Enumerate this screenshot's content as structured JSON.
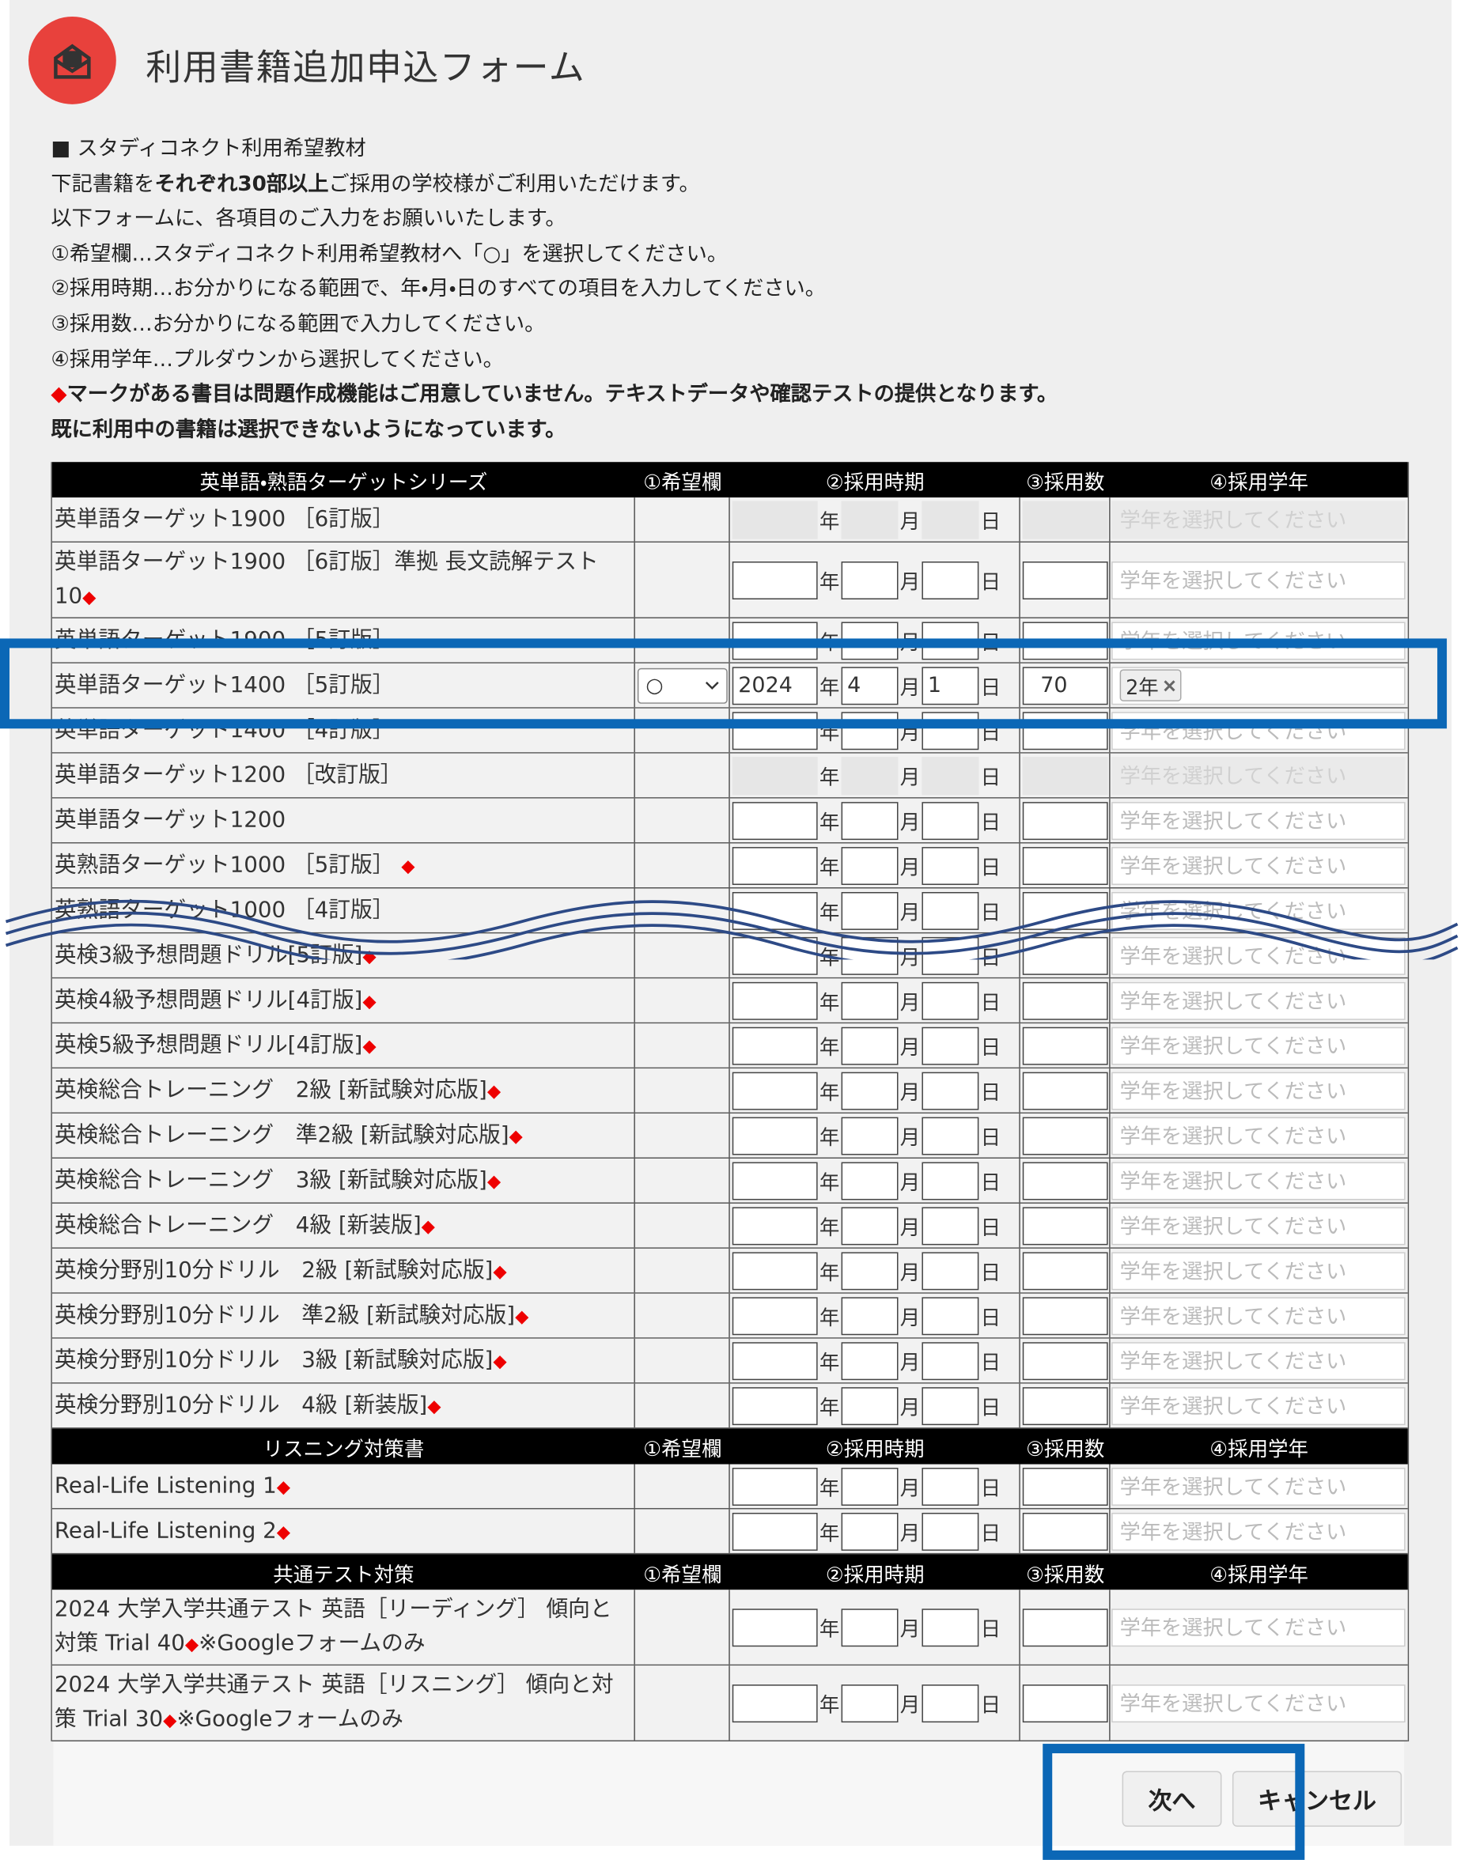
{
  "header": {
    "title": "利用書籍追加申込フォーム"
  },
  "intro": {
    "lines": [
      [
        {
          "text": "■ スタディコネクト利用希望教材"
        }
      ],
      [
        {
          "text": "下記書籍を"
        },
        {
          "text": "それぞれ30部以上",
          "bold": true
        },
        {
          "text": "ご採用の学校様がご利用いただけます。"
        }
      ],
      [
        {
          "text": "以下フォームに、各項目のご入力をお願いいたします。"
        }
      ],
      [
        {
          "text": "①希望欄…スタディコネクト利用希望教材へ「○」を選択してください。"
        }
      ],
      [
        {
          "text": "②採用時期…お分かりになる範囲で、年・月・日のすべての項目を入力してください。"
        }
      ],
      [
        {
          "text": "③採用数…お分かりになる範囲で入力してください。"
        }
      ],
      [
        {
          "text": "④採用学年…プルダウンから選択してください。"
        }
      ],
      [
        {
          "text": "◆",
          "color": "red"
        },
        {
          "text": "マークがある書目は問題作成機能はご用意していません。テキストデータや確認テストの提供となります。",
          "bold": true
        }
      ],
      [
        {
          "text": "既に利用中の書籍は選択できないようになっています。",
          "bold": true
        }
      ]
    ]
  },
  "table": {
    "columns": [
      "①希望欄",
      "②採用時期",
      "③採用数",
      "④採用学年"
    ],
    "units": [
      "年",
      "月",
      "日"
    ],
    "placeholder": "学年を選択してください",
    "diamond": "◆",
    "sections": [
      {
        "title": "英単語・熟語ターゲットシリーズ",
        "rows": [
          {
            "name": "英単語ターゲット1900 ［6訂版］",
            "state": "disabled"
          },
          {
            "name": "英単語ターゲット1900 ［6訂版］準拠 長文読解テスト10",
            "diamond": true,
            "state": "enabled"
          },
          {
            "name": "英単語ターゲット1900 ［5訂版］",
            "state": "enabled"
          },
          {
            "name": "英単語ターゲット1400 ［5訂版］",
            "state": "selected",
            "choice": "○",
            "year": "2024",
            "month": "4",
            "day": "1",
            "count": "70",
            "grade": "2年"
          },
          {
            "name": "英単語ターゲット1400 ［4訂版］",
            "state": "enabled"
          },
          {
            "name": "英単語ターゲット1200 ［改訂版］",
            "state": "disabled"
          },
          {
            "name": "英単語ターゲット1200",
            "state": "enabled"
          },
          {
            "name": "英熟語ターゲット1000 ［5訂版］ ",
            "diamond": true,
            "state": "enabled"
          },
          {
            "name": "英熟語ターゲット1000 ［4訂版］",
            "state": "enabled"
          },
          {
            "name": "英検3級予想問題ドリル[5訂版]",
            "diamond": true,
            "state": "enabled"
          },
          {
            "name": "英検4級予想問題ドリル[4訂版]",
            "diamond": true,
            "state": "enabled"
          },
          {
            "name": "英検5級予想問題ドリル[4訂版]",
            "diamond": true,
            "state": "enabled"
          },
          {
            "name": "英検総合トレーニング　2級 [新試験対応版]",
            "diamond": true,
            "state": "enabled"
          },
          {
            "name": "英検総合トレーニング　準2級 [新試験対応版]",
            "diamond": true,
            "state": "enabled"
          },
          {
            "name": "英検総合トレーニング　3級 [新試験対応版]",
            "diamond": true,
            "state": "enabled"
          },
          {
            "name": "英検総合トレーニング　4級 [新装版]",
            "diamond": true,
            "state": "enabled"
          },
          {
            "name": "英検分野別10分ドリル　2級 [新試験対応版]",
            "diamond": true,
            "state": "enabled"
          },
          {
            "name": "英検分野別10分ドリル　準2級 [新試験対応版]",
            "diamond": true,
            "state": "enabled"
          },
          {
            "name": "英検分野別10分ドリル　3級 [新試験対応版]",
            "diamond": true,
            "state": "enabled"
          },
          {
            "name": "英検分野別10分ドリル　4級 [新装版]",
            "diamond": true,
            "state": "enabled"
          }
        ]
      },
      {
        "title": "リスニング対策書",
        "rows": [
          {
            "name": "Real-Life Listening 1",
            "diamond": true,
            "state": "enabled"
          },
          {
            "name": "Real-Life Listening 2",
            "diamond": true,
            "state": "enabled"
          }
        ]
      },
      {
        "title": "共通テスト対策",
        "rows": [
          {
            "name": "2024 大学入学共通テスト 英語［リーディング］ 傾向と対策 Trial 40",
            "diamond": true,
            "note": "※Googleフォームのみ",
            "state": "enabled"
          },
          {
            "name": "2024 大学入学共通テスト 英語［リスニング］ 傾向と対策 Trial 30",
            "diamond": true,
            "note": "※Googleフォームのみ",
            "state": "enabled"
          }
        ]
      }
    ]
  },
  "buttons": {
    "next": "次へ",
    "cancel": "キャンセル"
  }
}
